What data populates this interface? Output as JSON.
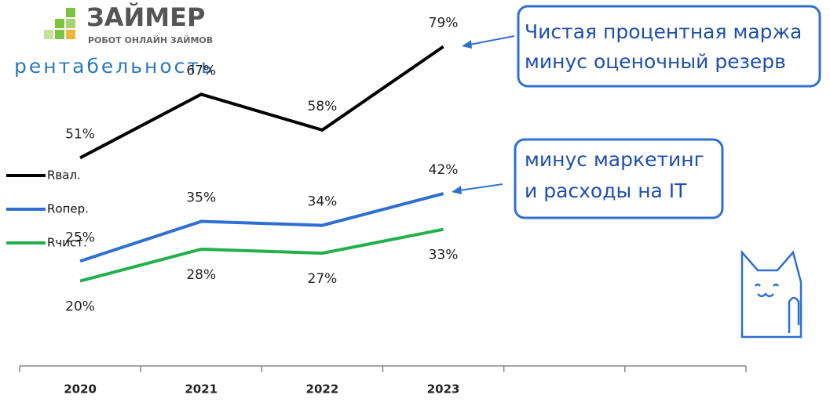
{
  "brand": {
    "name": "ЗАЙМЕР",
    "tagline": "РОБОТ ОНЛАЙН ЗАЙМОВ"
  },
  "chart_data": {
    "type": "line",
    "title": "рентабельность",
    "categories": [
      "2020",
      "2021",
      "2022",
      "2023",
      null,
      null
    ],
    "series": [
      {
        "name": "Rвал.",
        "color": "#000000",
        "label_position": "above",
        "values": [
          51,
          67,
          58,
          79,
          null,
          null
        ],
        "value_labels": [
          "51%",
          "67%",
          "58%",
          "79%",
          null,
          null
        ]
      },
      {
        "name": "Rопер.",
        "color": "#2f6fd0",
        "label_position": "above",
        "values": [
          25,
          35,
          34,
          42,
          null,
          null
        ],
        "value_labels": [
          "25%",
          "35%",
          "34%",
          "42%",
          null,
          null
        ]
      },
      {
        "name": "Rчист.",
        "color": "#22b04b",
        "label_position": "below",
        "values": [
          20,
          28,
          27,
          33,
          null,
          null
        ],
        "value_labels": [
          "20%",
          "28%",
          "27%",
          "33%",
          null,
          null
        ]
      }
    ],
    "annotations": [
      {
        "lines": [
          "Чистая процентная маржа",
          "минус оценочный резерв"
        ]
      },
      {
        "lines": [
          "минус маркетинг",
          "и расходы на IT"
        ]
      }
    ]
  }
}
